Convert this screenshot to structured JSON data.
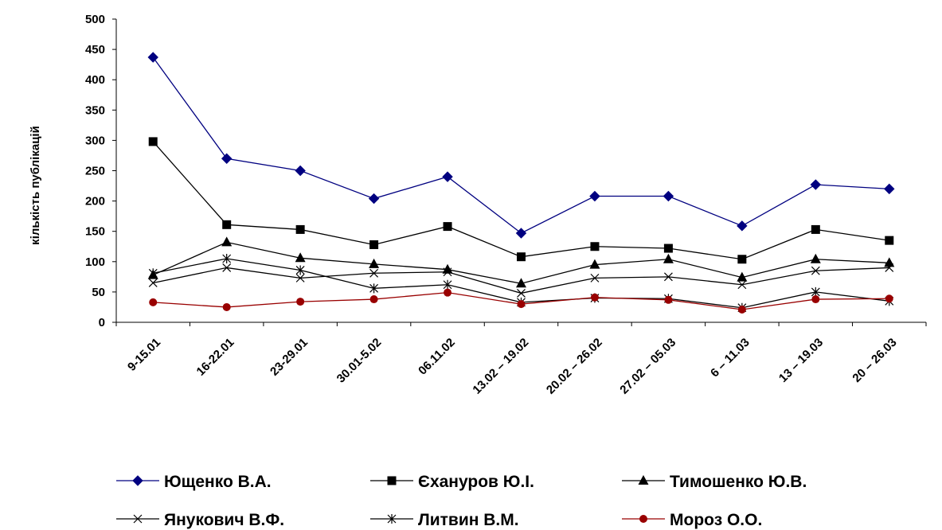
{
  "chart_data": {
    "type": "line",
    "title": "",
    "xlabel": "",
    "ylabel": "кількість публікацій",
    "ylim": [
      0,
      500
    ],
    "yticks": [
      0,
      50,
      100,
      150,
      200,
      250,
      300,
      350,
      400,
      450,
      500
    ],
    "grid": false,
    "legend_position": "bottom",
    "categories": [
      "9-15.01",
      "16-22.01",
      "23-29.01",
      "30.01-5.02",
      "06.11.02",
      "13.02 – 19.02",
      "20.02 – 26.02",
      "27.02 – 05.03",
      "6 – 11.03",
      "13 – 19.03",
      "20 – 26.03"
    ],
    "series": [
      {
        "name": "Ющенко В.А.",
        "color": "#000080",
        "marker": "diamond",
        "values": [
          437,
          270,
          250,
          204,
          240,
          147,
          208,
          208,
          159,
          227,
          220
        ]
      },
      {
        "name": "Єхануров Ю.І.",
        "color": "#000000",
        "marker": "square",
        "values": [
          298,
          161,
          153,
          128,
          158,
          108,
          125,
          122,
          104,
          153,
          135
        ]
      },
      {
        "name": "Тимошенко Ю.В.",
        "color": "#000000",
        "marker": "triangle",
        "values": [
          78,
          132,
          106,
          96,
          87,
          64,
          95,
          104,
          74,
          104,
          98
        ]
      },
      {
        "name": "Янукович В.Ф.",
        "color": "#000000",
        "marker": "x",
        "values": [
          65,
          90,
          73,
          81,
          83,
          48,
          73,
          75,
          62,
          85,
          90
        ]
      },
      {
        "name": "Литвин В.М.",
        "color": "#000000",
        "marker": "star",
        "values": [
          81,
          105,
          86,
          56,
          62,
          33,
          40,
          39,
          24,
          50,
          35
        ]
      },
      {
        "name": "Мороз О.О.",
        "color": "#990000",
        "marker": "circle",
        "values": [
          33,
          25,
          34,
          38,
          49,
          30,
          41,
          37,
          21,
          38,
          39
        ]
      }
    ]
  }
}
